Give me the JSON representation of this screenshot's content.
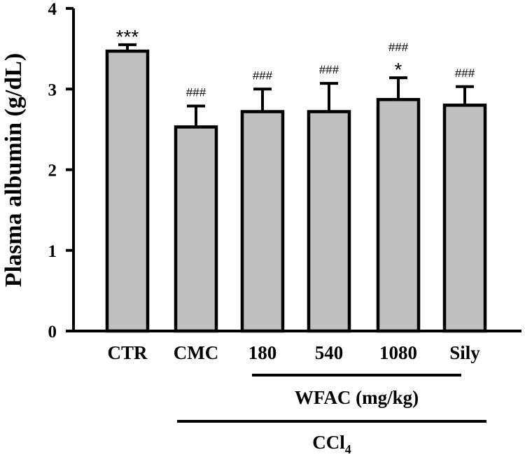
{
  "chart_data": {
    "type": "bar",
    "title": "",
    "xlabel": "",
    "ylabel": "Plasma albumin (g/dL)",
    "ylim": [
      0,
      4
    ],
    "yticks": [
      0,
      1,
      2,
      3,
      4
    ],
    "categories": [
      "CTR",
      "CMC",
      "180",
      "540",
      "1080",
      "Sily"
    ],
    "series": [
      {
        "name": "Plasma albumin",
        "values": [
          3.47,
          2.53,
          2.72,
          2.72,
          2.87,
          2.8
        ],
        "errors": [
          0.08,
          0.26,
          0.28,
          0.35,
          0.27,
          0.23
        ]
      }
    ],
    "annotations": [
      {
        "category": "CTR",
        "labels": [
          "***"
        ]
      },
      {
        "category": "CMC",
        "labels": [
          "###"
        ]
      },
      {
        "category": "180",
        "labels": [
          "###"
        ]
      },
      {
        "category": "540",
        "labels": [
          "###"
        ]
      },
      {
        "category": "1080",
        "labels": [
          "###",
          "*"
        ]
      },
      {
        "category": "Sily",
        "labels": [
          "###"
        ]
      }
    ],
    "groups": [
      {
        "label": "WFAC (mg/kg)",
        "from": "180",
        "to": "Sily"
      },
      {
        "label_main": "CCl",
        "label_sub": "4",
        "from": "CMC",
        "to": "Sily"
      }
    ],
    "bar_color": "#c0c0c0",
    "edge_color": "#000000"
  }
}
